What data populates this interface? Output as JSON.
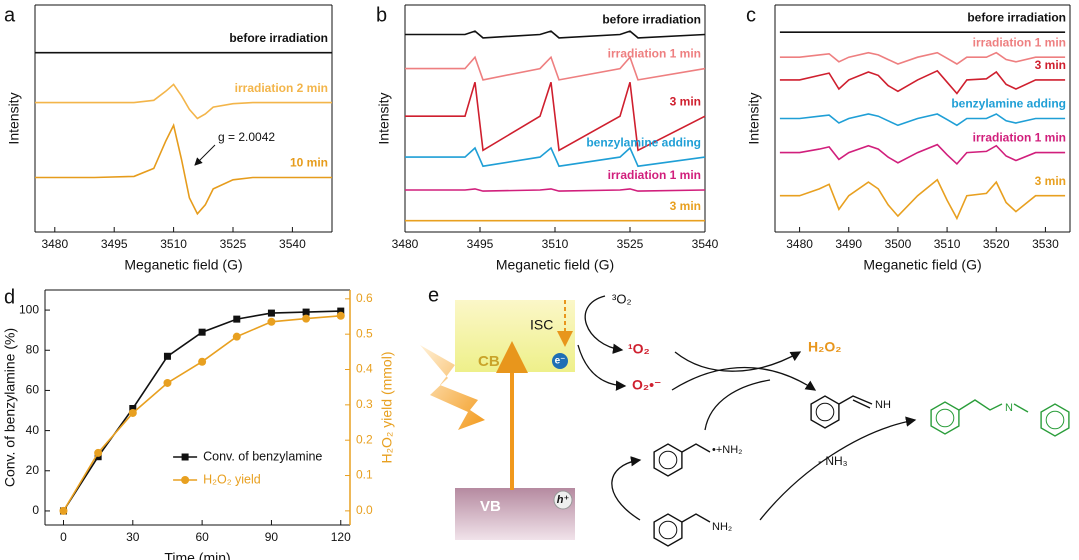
{
  "chart_data": [
    {
      "type": "line",
      "panel_label": "a",
      "xlabel": "Meganetic field (G)",
      "ylabel": "Intensity",
      "xlim": [
        3475,
        3550
      ],
      "xticks": [
        3480,
        3495,
        3510,
        3525,
        3540
      ],
      "ylim": [
        0,
        100
      ],
      "x": [
        3475,
        3490,
        3500,
        3505,
        3508,
        3510,
        3512,
        3514,
        3516,
        3518,
        3520,
        3525,
        3530,
        3550
      ],
      "series": [
        {
          "name": "before irradiation",
          "color": "#111111",
          "values": [
            79,
            79,
            79,
            79,
            79,
            79,
            79,
            79,
            79,
            79,
            79,
            79,
            79,
            79
          ]
        },
        {
          "name": "irradiation 2 min",
          "color": "#f3b54a",
          "values": [
            57,
            57,
            57,
            58,
            62,
            65,
            60,
            54,
            50,
            52,
            55,
            56.5,
            57,
            57
          ]
        },
        {
          "name": "10 min",
          "color": "#e69c1c",
          "values": [
            24,
            24,
            24.5,
            28,
            40,
            47,
            32,
            15,
            8,
            12,
            19,
            23,
            24,
            24
          ]
        }
      ],
      "annotation": "g = 2.0042"
    },
    {
      "type": "line",
      "panel_label": "b",
      "xlabel": "Meganetic field (G)",
      "ylabel": "Intensity",
      "xlim": [
        3480,
        3540
      ],
      "xticks": [
        3480,
        3495,
        3510,
        3525,
        3540
      ],
      "ylim": [
        0,
        100
      ],
      "x": [
        3480,
        3492,
        3494,
        3494.8,
        3495.6,
        3507,
        3509.2,
        3510,
        3510.8,
        3523,
        3525,
        3525.8,
        3526.6,
        3540
      ],
      "series": [
        {
          "name": "before irradiation",
          "color": "#111111",
          "values": [
            87,
            87,
            88.5,
            87,
            85.5,
            87,
            88.5,
            87,
            85.5,
            87,
            88.5,
            87,
            85.5,
            87
          ]
        },
        {
          "name": "irradiation 1 min",
          "color": "#ee7f80",
          "values": [
            72,
            72,
            77,
            72,
            67,
            72,
            77,
            72,
            67,
            72,
            77,
            72,
            67,
            72
          ]
        },
        {
          "name": "3 min",
          "color": "#cf1f2e",
          "values": [
            51,
            51,
            66,
            51,
            36,
            51,
            66,
            51,
            36,
            51,
            66,
            51,
            36,
            51
          ]
        },
        {
          "name": "benzylamine adding",
          "color": "#1f9fd6",
          "values": [
            33,
            33,
            37,
            33,
            29,
            33,
            37,
            33,
            29,
            33,
            37,
            33,
            29,
            33
          ]
        },
        {
          "name": "irradiation 1 min",
          "color": "#d11f7c",
          "values": [
            18.5,
            18.5,
            19,
            18.5,
            18,
            18.5,
            19,
            18.5,
            18,
            18.5,
            19,
            18.5,
            18,
            18.5
          ]
        },
        {
          "name": "3 min",
          "color": "#e8a020",
          "values": [
            5,
            5,
            5,
            5,
            5,
            5,
            5,
            5,
            5,
            5,
            5,
            5,
            5,
            5
          ]
        }
      ]
    },
    {
      "type": "line",
      "panel_label": "c",
      "xlabel": "Meganetic field (G)",
      "ylabel": "Intensity",
      "xlim": [
        3475,
        3535
      ],
      "xticks": [
        3480,
        3490,
        3500,
        3510,
        3520,
        3530
      ],
      "ylim": [
        0,
        100
      ],
      "x": [
        3476,
        3480,
        3484,
        3486,
        3488,
        3490,
        3494,
        3496,
        3498,
        3500,
        3504,
        3508,
        3510,
        3512,
        3514,
        3518,
        3520,
        3522,
        3524,
        3528,
        3534
      ],
      "series": [
        {
          "name": "before irradiation",
          "color": "#111111",
          "values": [
            88,
            88,
            88,
            88,
            88,
            88,
            88,
            88,
            88,
            88,
            88,
            88,
            88,
            88,
            88,
            88,
            88,
            88,
            88,
            88,
            88
          ]
        },
        {
          "name": "irradiation 1 min",
          "color": "#ee7f80",
          "values": [
            77,
            77,
            78,
            78.5,
            75,
            77,
            79,
            78,
            76,
            74,
            77,
            79,
            76.5,
            74,
            77,
            77,
            79,
            76,
            75,
            77,
            77
          ]
        },
        {
          "name": "3 min",
          "color": "#cf1f2e",
          "values": [
            67,
            67,
            69,
            70,
            63,
            67,
            70.5,
            69,
            64.5,
            62,
            67,
            71,
            66,
            61,
            67,
            67.5,
            70.5,
            65,
            63,
            67,
            67
          ]
        },
        {
          "name": "benzylamine adding",
          "color": "#1f9fd6",
          "values": [
            50,
            50,
            51,
            51.5,
            48,
            50,
            52,
            51,
            49,
            47,
            50,
            52,
            49.5,
            47,
            50,
            50,
            52,
            49,
            48,
            50,
            50
          ]
        },
        {
          "name": "irradiation 1 min",
          "color": "#d11f7c",
          "values": [
            35,
            35,
            36.5,
            37.5,
            32,
            35,
            38,
            36.5,
            33,
            30.5,
            35,
            38.5,
            34,
            30,
            35,
            35.5,
            38,
            33.5,
            31.5,
            35,
            35
          ]
        },
        {
          "name": "3 min",
          "color": "#e8a020",
          "values": [
            16,
            16,
            19,
            21,
            10,
            16,
            22,
            19,
            12,
            7,
            16,
            23,
            14,
            6,
            16,
            17,
            22,
            13,
            9,
            16,
            16
          ]
        }
      ]
    },
    {
      "type": "line",
      "panel_label": "d",
      "xlabel": "Time (min)",
      "ylabel": "Conv. of benzylamine (%)",
      "y2label": "H₂O₂ yield (mmol)",
      "xlim": [
        -8,
        124
      ],
      "xticks": [
        0,
        30,
        60,
        90,
        120
      ],
      "ylim": [
        -7,
        110
      ],
      "yticks": [
        0,
        20,
        40,
        60,
        80,
        100
      ],
      "y2lim": [
        -0.04,
        0.625
      ],
      "y2ticks": [
        {
          "value": 0,
          "label": "0.0"
        },
        0.1,
        0.2,
        0.3,
        0.4,
        0.5,
        0.6
      ],
      "x": [
        0,
        15,
        30,
        45,
        60,
        75,
        90,
        105,
        120
      ],
      "series": [
        {
          "name": "Conv. of benzylamine",
          "color": "#111111",
          "marker": "square",
          "values": [
            0,
            27,
            51,
            77,
            89,
            95.5,
            98.5,
            99,
            99.5
          ]
        },
        {
          "name": "H₂O₂ yield",
          "color": "#e8a020",
          "marker": "circle",
          "axis": "y2",
          "values": [
            0,
            0.164,
            0.277,
            0.362,
            0.422,
            0.493,
            0.535,
            0.544,
            0.552
          ]
        }
      ],
      "legend": "lower right"
    }
  ],
  "diagram": {
    "panel_label": "e",
    "cb": "CB",
    "vb": "VB",
    "isc": "ISC",
    "electron": "e⁻",
    "hole": "h⁺",
    "triplet_oxygen": "³O₂",
    "singlet_oxygen": "¹O₂",
    "superoxide": "O₂•⁻",
    "hydrogen_peroxide": "H₂O₂",
    "radical_cation_amine": "•+NH₂",
    "imine_nh": "NH",
    "benzylamine_nh2": "NH₂",
    "product_n": "N",
    "byproduct": "- NH₃"
  }
}
